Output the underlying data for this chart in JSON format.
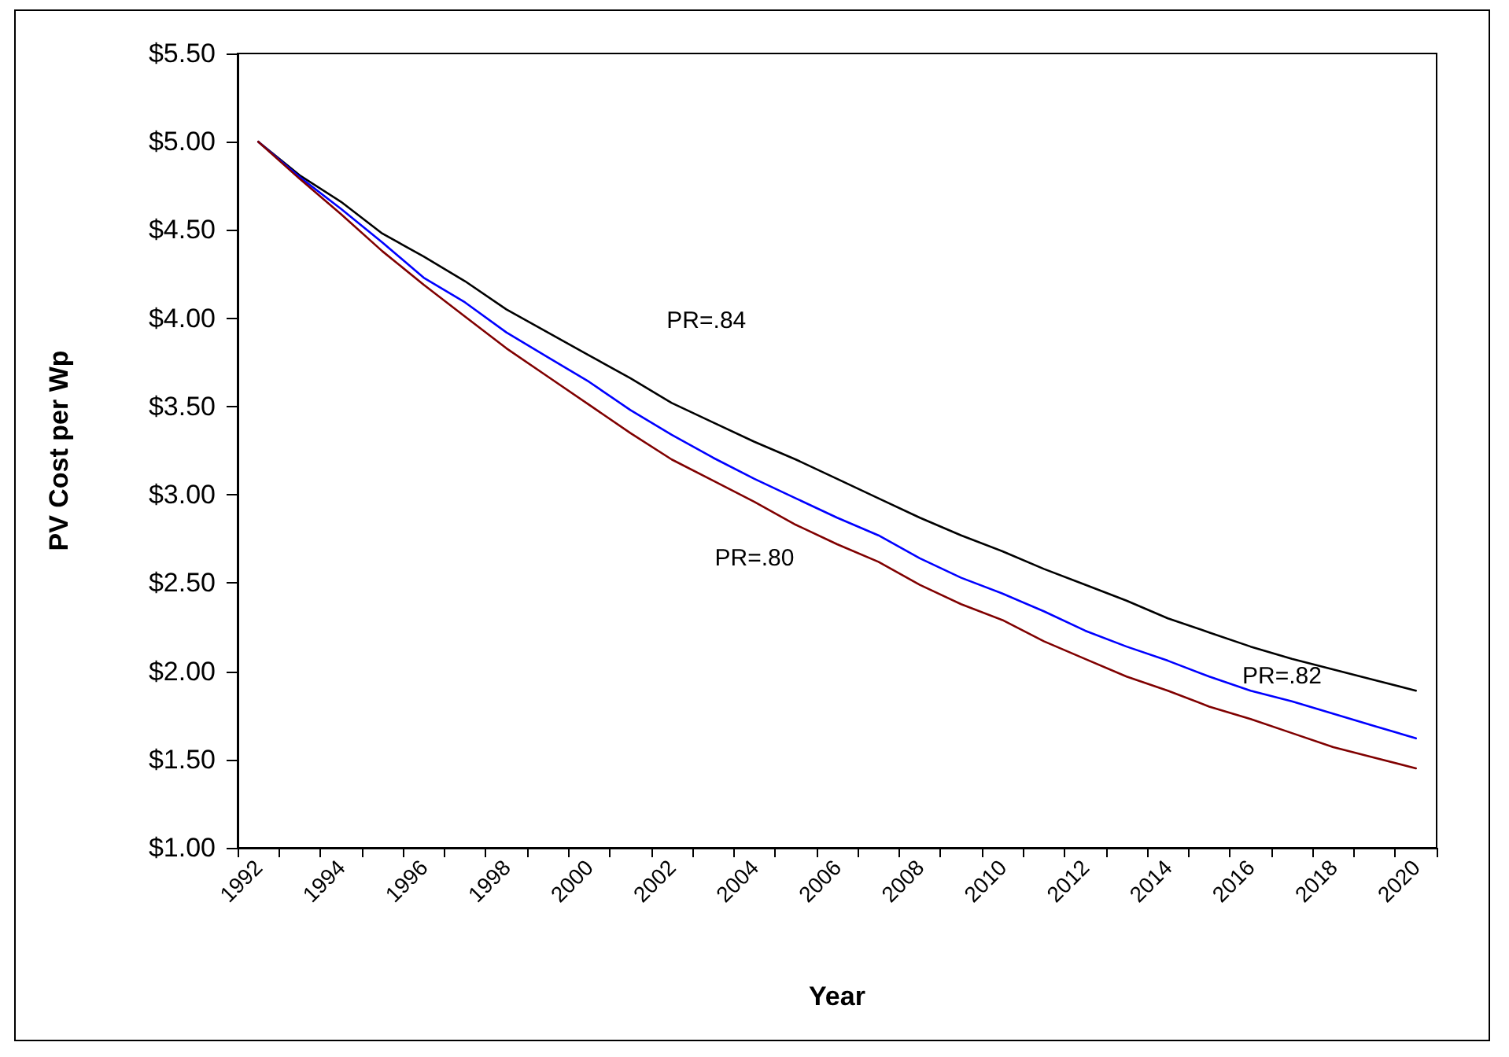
{
  "chart_data": {
    "type": "line",
    "xlabel": "Year",
    "ylabel": "PV Cost per Wp",
    "categories": [
      "1992",
      null,
      "1994",
      null,
      "1996",
      null,
      "1998",
      null,
      "2000",
      null,
      "2002",
      null,
      "2004",
      null,
      "2006",
      null,
      "2008",
      null,
      "2010",
      null,
      "2012",
      null,
      "2014",
      null,
      "2016",
      null,
      "2018",
      null,
      "2020"
    ],
    "series": [
      {
        "name": "PR=.84",
        "color": "#000000",
        "values": [
          5.0,
          4.81,
          4.66,
          4.48,
          4.35,
          4.21,
          4.05,
          3.92,
          3.79,
          3.66,
          3.52,
          3.41,
          3.3,
          3.2,
          3.09,
          2.98,
          2.87,
          2.77,
          2.68,
          2.58,
          2.49,
          2.4,
          2.3,
          2.22,
          2.14,
          2.07,
          2.01,
          1.95,
          1.89
        ]
      },
      {
        "name": "PR=.82",
        "color": "#0000ff",
        "values": [
          5.0,
          4.8,
          4.62,
          4.43,
          4.23,
          4.09,
          3.92,
          3.78,
          3.64,
          3.48,
          3.34,
          3.21,
          3.09,
          2.98,
          2.87,
          2.77,
          2.64,
          2.53,
          2.44,
          2.34,
          2.23,
          2.14,
          2.06,
          1.97,
          1.89,
          1.83,
          1.76,
          1.69,
          1.62
        ]
      },
      {
        "name": "PR=.80",
        "color": "#800000",
        "values": [
          5.0,
          4.79,
          4.59,
          4.38,
          4.19,
          4.01,
          3.83,
          3.67,
          3.51,
          3.35,
          3.2,
          3.08,
          2.96,
          2.83,
          2.72,
          2.62,
          2.49,
          2.38,
          2.29,
          2.17,
          2.07,
          1.97,
          1.89,
          1.8,
          1.73,
          1.65,
          1.57,
          1.51,
          1.45
        ]
      }
    ],
    "ylim": [
      1,
      5.5
    ],
    "yticks": [
      {
        "value": 1,
        "label": "$1.00"
      },
      {
        "value": 1.5,
        "label": "$1.50"
      },
      {
        "value": 2,
        "label": "$2.00"
      },
      {
        "value": 2.5,
        "label": "$2.50"
      },
      {
        "value": 3,
        "label": "$3.00"
      },
      {
        "value": 3.5,
        "label": "$3.50"
      },
      {
        "value": 4,
        "label": "$4.00"
      },
      {
        "value": 4.5,
        "label": "$4.50"
      },
      {
        "value": 5,
        "label": "$5.00"
      },
      {
        "value": 5.5,
        "label": "$5.50"
      }
    ],
    "grid": false,
    "legend": false,
    "marker": "none",
    "line_style": "solid"
  }
}
